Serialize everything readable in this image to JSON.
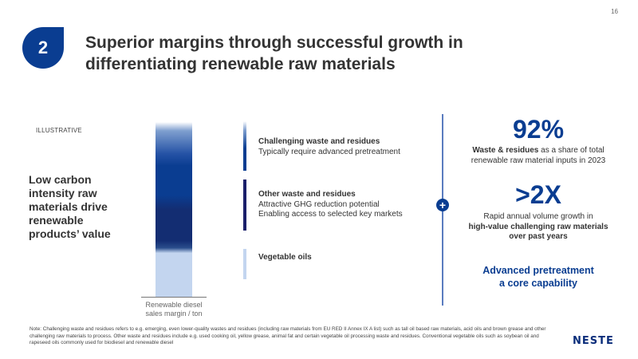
{
  "page": {
    "number": "16",
    "badge": "2",
    "title_lines": [
      "Superior margins through successful growth in",
      "differentiating renewable raw materials"
    ]
  },
  "left": {
    "tag": "ILLUSTRATIVE",
    "statement_lines": [
      "Low carbon",
      "intensity raw",
      "materials drive",
      "renewable",
      "products’ value"
    ]
  },
  "bar": {
    "label_lines": [
      "Renewable diesel",
      "sales margin / ton"
    ]
  },
  "categories": [
    {
      "head": "Challenging waste and residues",
      "lines": [
        "Typically require advanced pretreatment"
      ],
      "color": "#0a3d91"
    },
    {
      "head": "Other waste and residues",
      "lines": [
        "Attractive GHG reduction potential",
        "Enabling access to selected key markets"
      ],
      "color": "#1a1f6a"
    },
    {
      "head": "Vegetable oils",
      "lines": [],
      "color": "#c3d5ef"
    }
  ],
  "divider": {
    "icon": "plus-icon",
    "symbol": "+"
  },
  "stats": [
    {
      "value": "92%",
      "bold": "Waste & residues",
      "rest": " as a share of total",
      "line2": "renewable raw material inputs in 2023"
    },
    {
      "value": ">2X",
      "line1": "Rapid annual volume growth in",
      "bold_line2": "high-value challenging raw materials",
      "bold_line3": "over past years"
    }
  ],
  "capability_lines": [
    "Advanced pretreatment",
    "a core capability"
  ],
  "note": "Note: Challenging waste and residues refers to e.g. emerging, even lower-quality wastes and residues (including raw materials from EU RED II Annex IX A list) such as tall oil based raw materials, acid oils and brown grease and other challenging raw materials to process. Other waste and residues include e.g. used cooking oil, yellow grease, animal fat and certain vegetable oil processing waste and residues. Conventional vegetable oils such as soybean oil and rapeseed oils commonly used for biodiesel and renewable diesel",
  "logo": "NESTE",
  "colors": {
    "brand": "#0a3d91",
    "dark": "#1a1f6a",
    "light": "#c3d5ef"
  }
}
